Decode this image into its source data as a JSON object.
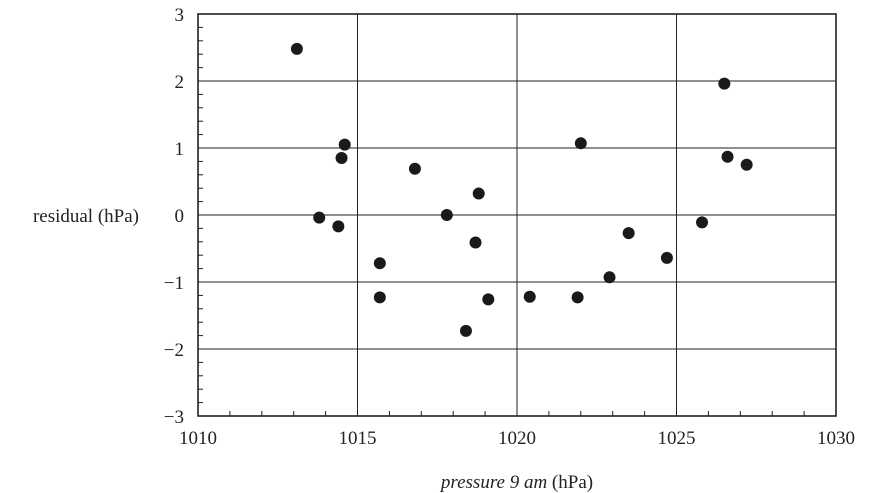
{
  "chart_data": {
    "type": "scatter",
    "xlabel_italic": "pressure 9 am",
    "xlabel_unit": " (hPa)",
    "ylabel": "residual (hPa)",
    "xlim": [
      1010,
      1030
    ],
    "ylim": [
      -3,
      3
    ],
    "x_ticks": [
      1010,
      1015,
      1020,
      1025,
      1030
    ],
    "y_ticks": [
      -3,
      -2,
      -1,
      0,
      1,
      2,
      3
    ],
    "x_tick_labels": [
      "1010",
      "1015",
      "1020",
      "1025",
      "1030"
    ],
    "y_tick_labels": [
      "−3",
      "−2",
      "−1",
      "0",
      "1",
      "2",
      "3"
    ],
    "grid": true,
    "points": [
      {
        "x": 1013.1,
        "y": 2.48
      },
      {
        "x": 1013.8,
        "y": -0.04
      },
      {
        "x": 1014.4,
        "y": -0.17
      },
      {
        "x": 1014.5,
        "y": 0.85
      },
      {
        "x": 1014.6,
        "y": 1.05
      },
      {
        "x": 1015.7,
        "y": -0.72
      },
      {
        "x": 1015.7,
        "y": -1.23
      },
      {
        "x": 1016.8,
        "y": 0.69
      },
      {
        "x": 1017.8,
        "y": 0.0
      },
      {
        "x": 1018.4,
        "y": -1.73
      },
      {
        "x": 1018.7,
        "y": -0.41
      },
      {
        "x": 1018.8,
        "y": 0.32
      },
      {
        "x": 1019.1,
        "y": -1.26
      },
      {
        "x": 1020.4,
        "y": -1.22
      },
      {
        "x": 1021.9,
        "y": -1.23
      },
      {
        "x": 1022.0,
        "y": 1.07
      },
      {
        "x": 1022.9,
        "y": -0.93
      },
      {
        "x": 1023.5,
        "y": -0.27
      },
      {
        "x": 1024.7,
        "y": -0.64
      },
      {
        "x": 1025.8,
        "y": -0.11
      },
      {
        "x": 1026.5,
        "y": 1.96
      },
      {
        "x": 1026.6,
        "y": 0.87
      },
      {
        "x": 1027.2,
        "y": 0.75
      }
    ]
  }
}
